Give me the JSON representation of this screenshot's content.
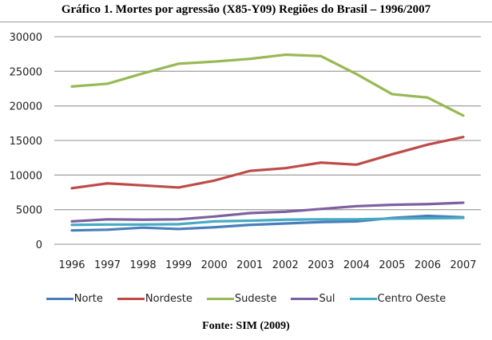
{
  "chart_data": {
    "type": "line",
    "title": "Gráfico 1. Mortes por agressão (X85-Y09) Regiões do Brasil – 1996/2007",
    "xlabel": "",
    "ylabel": "",
    "x": [
      "1996",
      "1997",
      "1998",
      "1999",
      "2000",
      "2001",
      "2002",
      "2003",
      "2004",
      "2005",
      "2006",
      "2007"
    ],
    "ylim": [
      0,
      30000
    ],
    "yticks": [
      "0",
      "5000",
      "10000",
      "15000",
      "20000",
      "25000",
      "30000"
    ],
    "ytick_values": [
      0,
      5000,
      10000,
      15000,
      20000,
      25000,
      30000
    ],
    "grid": true,
    "legend_position": "bottom",
    "series": [
      {
        "name": "Norte",
        "color": "#4a7ebb",
        "values": [
          2000,
          2100,
          2400,
          2200,
          2450,
          2800,
          3000,
          3200,
          3300,
          3800,
          4100,
          3900
        ]
      },
      {
        "name": "Nordeste",
        "color": "#be4b48",
        "values": [
          8100,
          8800,
          8500,
          8200,
          9200,
          10600,
          11000,
          11800,
          11500,
          13000,
          14400,
          15500
        ]
      },
      {
        "name": "Sudeste",
        "color": "#98b954",
        "values": [
          22800,
          23200,
          24700,
          26100,
          26400,
          26800,
          27400,
          27200,
          24600,
          21700,
          21200,
          18600
        ]
      },
      {
        "name": "Sul",
        "color": "#7d60a0",
        "values": [
          3300,
          3600,
          3550,
          3600,
          4000,
          4500,
          4700,
          5100,
          5500,
          5700,
          5800,
          6000
        ]
      },
      {
        "name": "Centro Oeste",
        "color": "#46aac5",
        "values": [
          2800,
          2850,
          2850,
          2900,
          3300,
          3400,
          3550,
          3600,
          3600,
          3700,
          3750,
          3800
        ]
      }
    ],
    "source": "Fonte: SIM (2009)"
  }
}
